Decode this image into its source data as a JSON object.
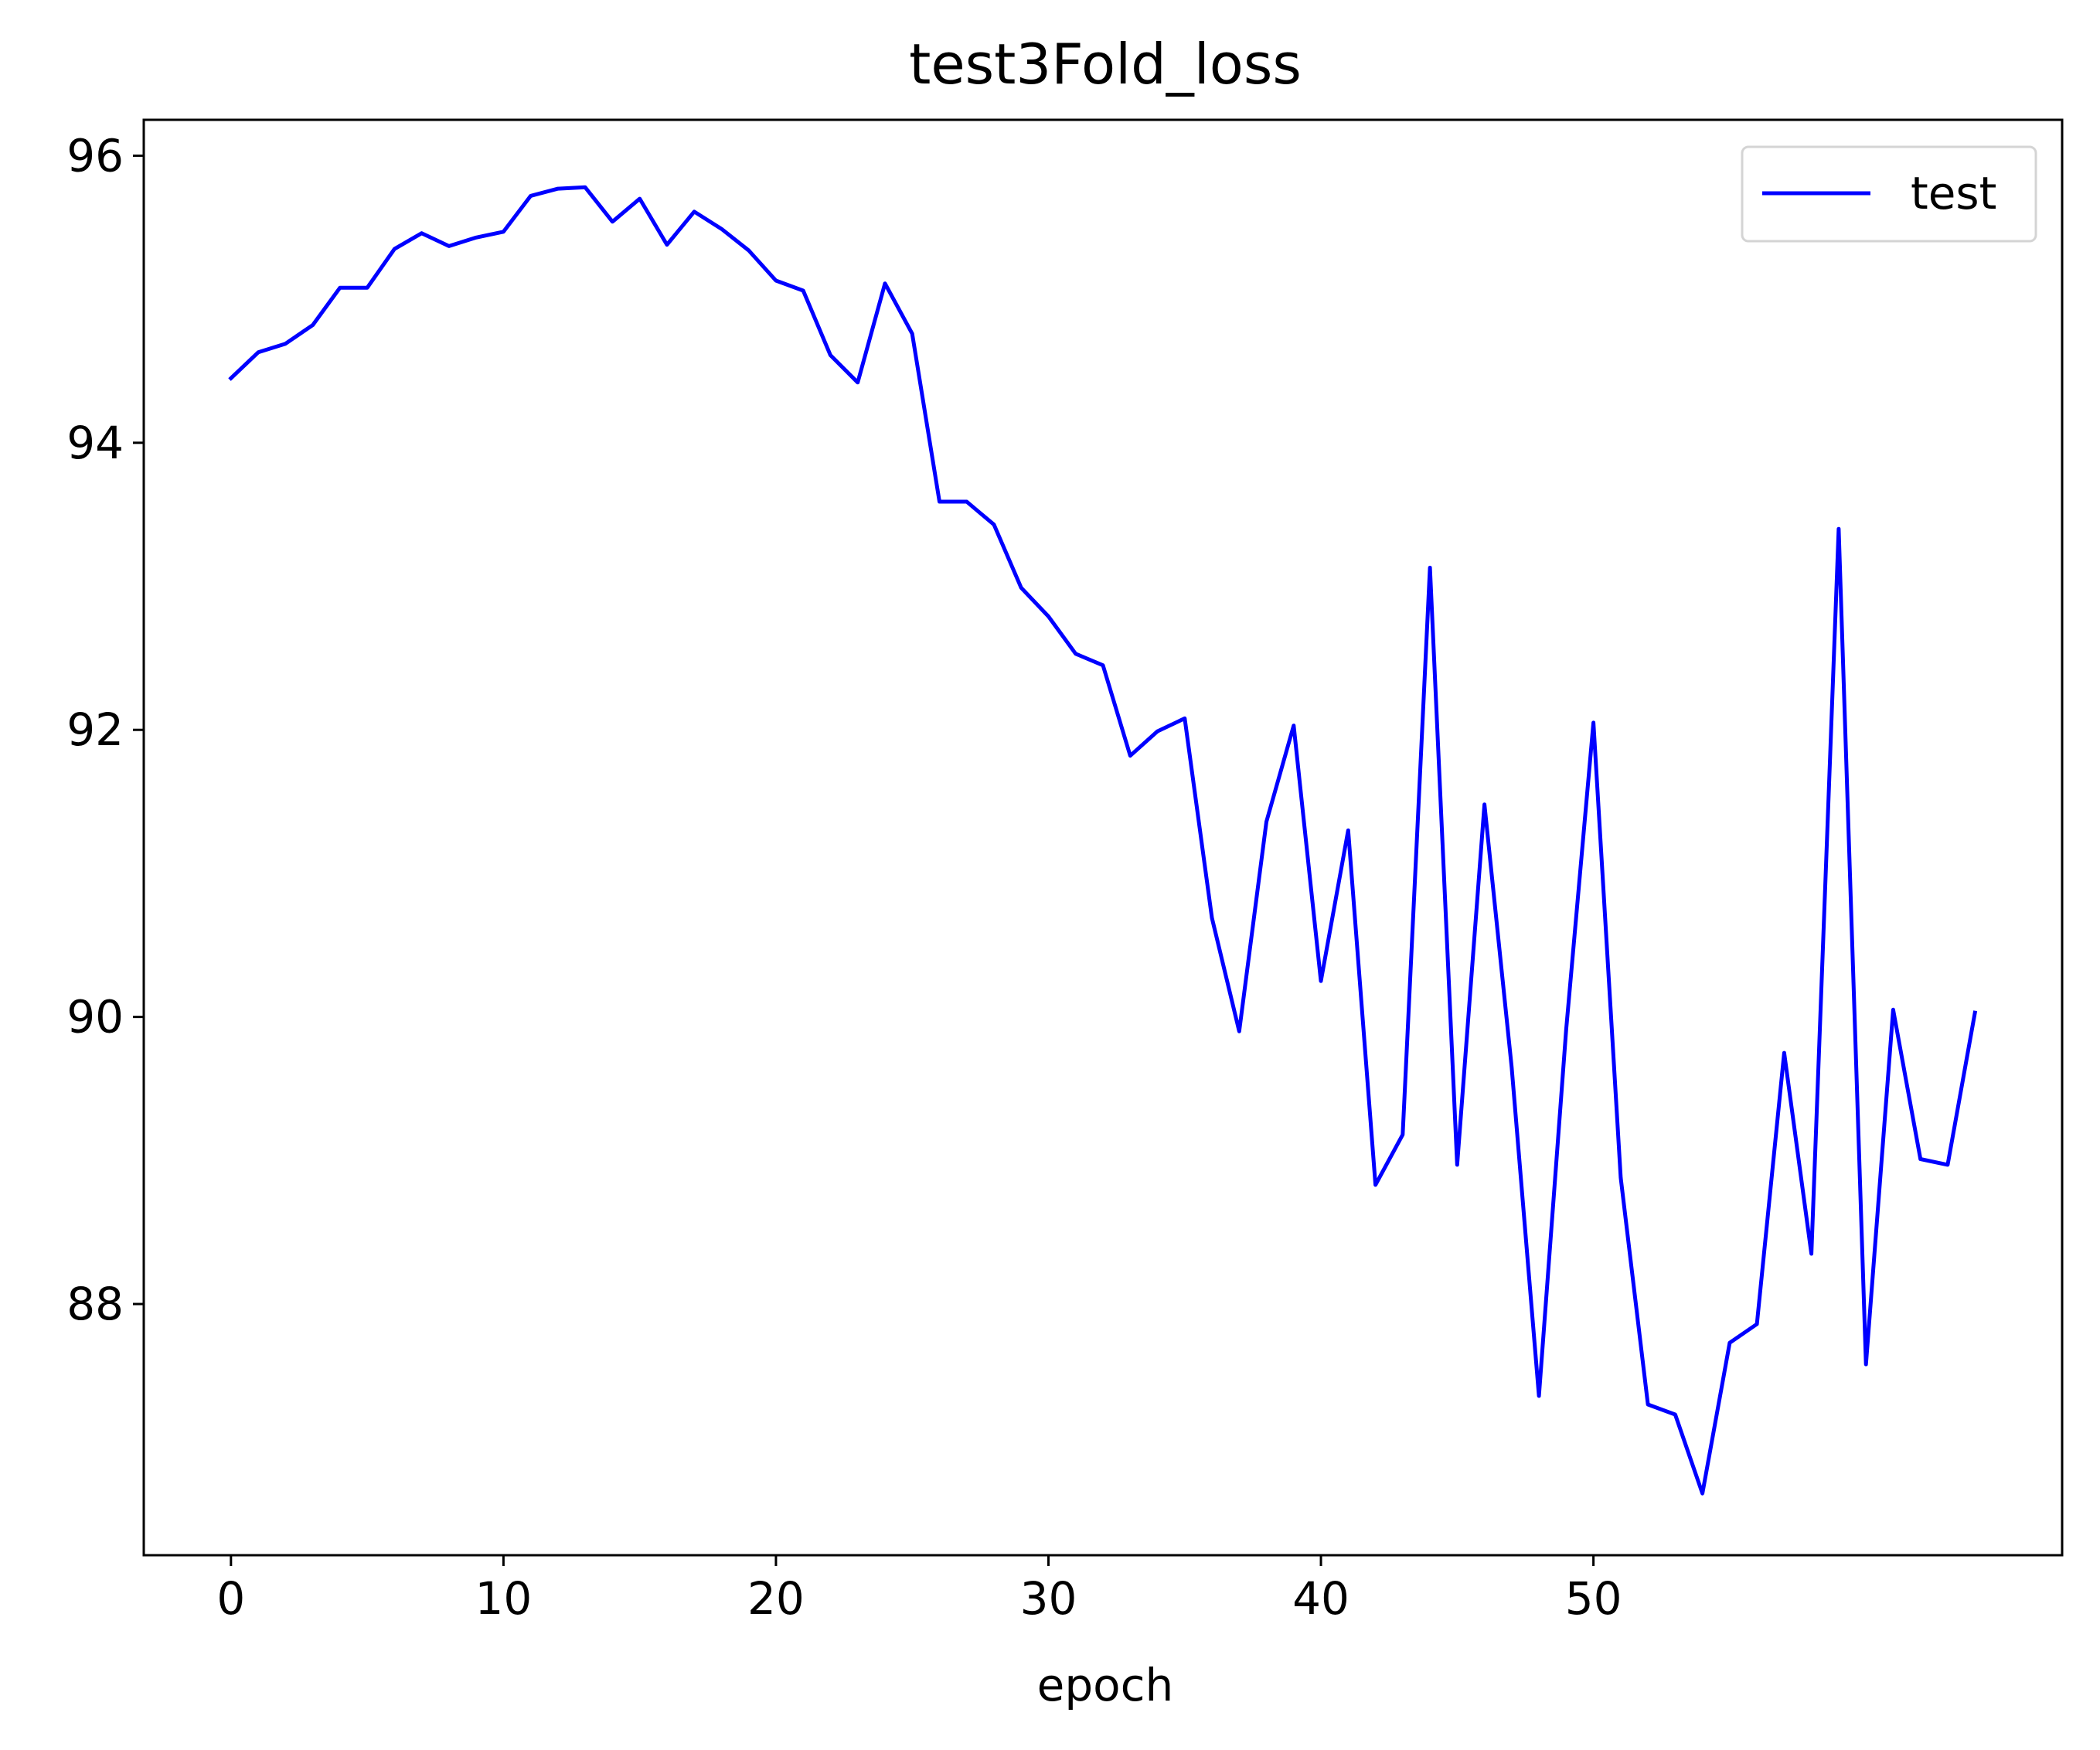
{
  "chart_data": {
    "type": "line",
    "title": "test3Fold_loss",
    "xlabel": "epoch",
    "ylabel": "",
    "xlim": [
      -3.2,
      67.2
    ],
    "ylim": [
      86.25,
      96.25
    ],
    "xticks": [
      0,
      10,
      20,
      30,
      40,
      50
    ],
    "yticks": [
      88,
      90,
      92,
      94,
      96
    ],
    "grid": false,
    "legend_position": "top-right",
    "series": [
      {
        "name": "test",
        "color": "#0000ff",
        "x": [
          0,
          1,
          2,
          3,
          4,
          5,
          6,
          7,
          8,
          9,
          10,
          11,
          12,
          13,
          14,
          15,
          16,
          17,
          18,
          19,
          20,
          21,
          22,
          23,
          24,
          25,
          26,
          27,
          28,
          29,
          30,
          31,
          32,
          33,
          34,
          35,
          36,
          37,
          38,
          39,
          40,
          41,
          42,
          43,
          44,
          45,
          46,
          47,
          48,
          49,
          50,
          51,
          52,
          53,
          54,
          55,
          56,
          57,
          58,
          59,
          60,
          61,
          62,
          63,
          64
        ],
        "values": [
          94.45,
          94.63,
          94.69,
          94.82,
          95.08,
          95.08,
          95.35,
          95.46,
          95.37,
          95.43,
          95.47,
          95.72,
          95.77,
          95.78,
          95.54,
          95.7,
          95.38,
          95.61,
          95.49,
          95.34,
          95.13,
          95.06,
          94.61,
          94.42,
          95.11,
          94.76,
          93.59,
          93.59,
          93.43,
          92.99,
          92.79,
          92.53,
          92.45,
          91.82,
          91.99,
          92.08,
          90.69,
          89.9,
          91.36,
          92.03,
          90.25,
          91.3,
          88.83,
          89.18,
          93.13,
          88.97,
          91.48,
          89.65,
          87.36,
          89.91,
          92.05,
          88.88,
          87.3,
          87.23,
          86.68,
          87.73,
          87.86,
          89.75,
          88.35,
          93.4,
          87.58,
          90.05,
          89.01,
          88.97,
          90.03
        ]
      }
    ]
  }
}
